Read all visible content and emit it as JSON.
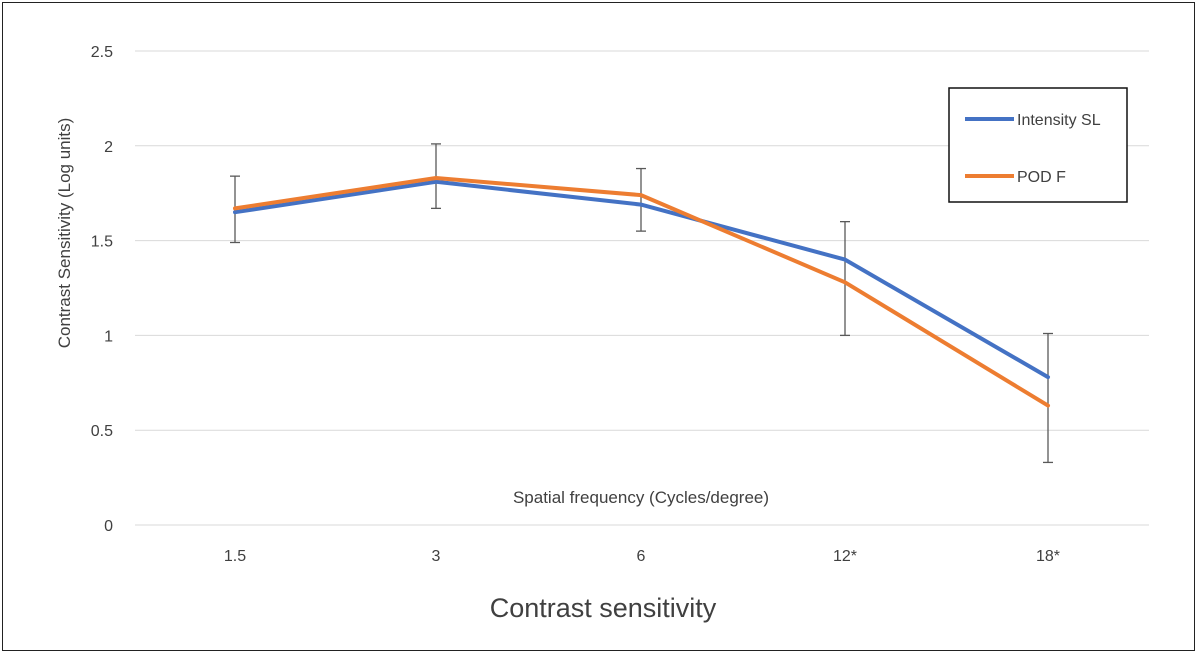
{
  "chart_data": {
    "type": "line",
    "title": "Contrast sensitivity",
    "xlabel": "Spatial frequency (Cycles/degree)",
    "ylabel": "Contrast Sensitivity (Log units)",
    "categories": [
      "1.5",
      "3",
      "6",
      "12*",
      "18*"
    ],
    "yticks": [
      "0",
      "0.5",
      "1",
      "1.5",
      "2",
      "2.5"
    ],
    "ylim": [
      0,
      2.5
    ],
    "grid": true,
    "legend_position": "top-right",
    "series": [
      {
        "name": "Intensity SL",
        "color": "#4472C4",
        "values": [
          1.65,
          1.81,
          1.69,
          1.4,
          0.78
        ]
      },
      {
        "name": "POD F",
        "color": "#ED7D31",
        "values": [
          1.67,
          1.83,
          1.74,
          1.28,
          0.63
        ]
      }
    ],
    "error_bars": {
      "lower": [
        1.49,
        1.67,
        1.55,
        1.0,
        0.33
      ],
      "upper": [
        1.84,
        2.01,
        1.88,
        1.6,
        1.01
      ]
    }
  }
}
